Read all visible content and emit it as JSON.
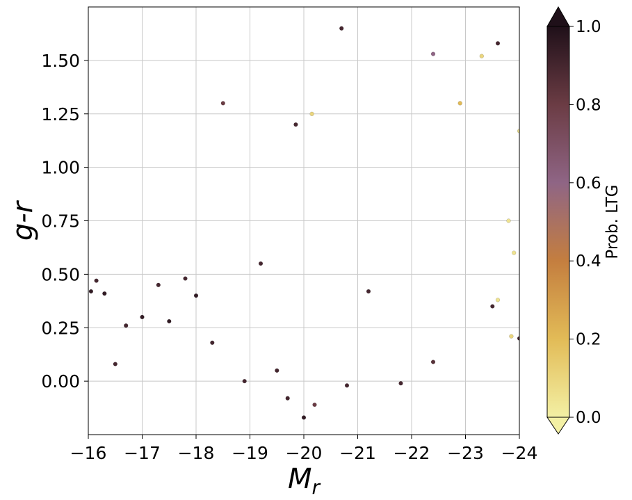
{
  "chart_data": {
    "type": "scatter",
    "title": "",
    "xlabel": "M",
    "xlabel_sub": "r",
    "ylabel": "g-r",
    "xlim": [
      -16,
      -24
    ],
    "ylim": [
      -0.25,
      1.75
    ],
    "x_inverted": true,
    "grid": true,
    "x_ticks": [
      -16,
      -17,
      -18,
      -19,
      -20,
      -21,
      -22,
      -23,
      -24
    ],
    "x_tick_labels": [
      "−16",
      "−17",
      "−18",
      "−19",
      "−20",
      "−21",
      "−22",
      "−23",
      "−24"
    ],
    "y_ticks": [
      0.0,
      0.25,
      0.5,
      0.75,
      1.0,
      1.25,
      1.5
    ],
    "y_tick_labels": [
      "0.00",
      "0.25",
      "0.50",
      "0.75",
      "1.00",
      "1.25",
      "1.50"
    ],
    "colorbar": {
      "label": "Prob. LTG",
      "range": [
        0.0,
        1.0
      ],
      "ticks": [
        0.0,
        0.2,
        0.4,
        0.6,
        0.8,
        1.0
      ],
      "tick_labels": [
        "0.0",
        "0.2",
        "0.4",
        "0.6",
        "0.8",
        "1.0"
      ],
      "extend": "both",
      "colors": [
        "#f3f0a4",
        "#e2bb57",
        "#c47e3f",
        "#8f6585",
        "#6b3c44",
        "#1f1019"
      ]
    },
    "series": [
      {
        "points": [
          [
            -16.05,
            0.42,
            0.95
          ],
          [
            -16.15,
            0.47,
            0.9
          ],
          [
            -16.3,
            0.41,
            0.95
          ],
          [
            -16.5,
            0.08,
            0.9
          ],
          [
            -16.7,
            0.26,
            0.9
          ],
          [
            -17.0,
            0.3,
            0.95
          ],
          [
            -17.3,
            0.45,
            0.9
          ],
          [
            -17.5,
            0.28,
            0.95
          ],
          [
            -17.8,
            0.48,
            0.9
          ],
          [
            -18.0,
            0.4,
            0.95
          ],
          [
            -18.3,
            0.18,
            0.9
          ],
          [
            -18.5,
            1.3,
            0.8
          ],
          [
            -18.9,
            0.0,
            0.9
          ],
          [
            -19.2,
            0.55,
            0.9
          ],
          [
            -19.5,
            0.05,
            0.9
          ],
          [
            -19.7,
            -0.08,
            0.9
          ],
          [
            -20.0,
            -0.17,
            0.95
          ],
          [
            -20.2,
            -0.11,
            0.8
          ],
          [
            -20.7,
            1.65,
            0.9
          ],
          [
            -20.8,
            -0.02,
            0.9
          ],
          [
            -21.8,
            -0.01,
            0.9
          ],
          [
            -22.4,
            0.09,
            0.85
          ],
          [
            -19.85,
            1.2,
            0.9
          ],
          [
            -20.15,
            1.25,
            0.1
          ],
          [
            -22.4,
            1.53,
            0.6
          ],
          [
            -22.9,
            1.3,
            0.2
          ],
          [
            -23.3,
            1.52,
            0.1
          ],
          [
            -23.6,
            1.58,
            0.9
          ],
          [
            -23.8,
            0.75,
            0.05
          ],
          [
            -23.9,
            0.6,
            0.05
          ],
          [
            -23.85,
            0.21,
            0.1
          ],
          [
            -24.0,
            0.2,
            0.9
          ],
          [
            -23.5,
            0.35,
            0.9
          ],
          [
            -23.6,
            0.38,
            0.05
          ],
          [
            -24.0,
            1.17,
            0.05
          ],
          [
            -21.2,
            0.42,
            0.9
          ]
        ]
      }
    ]
  }
}
